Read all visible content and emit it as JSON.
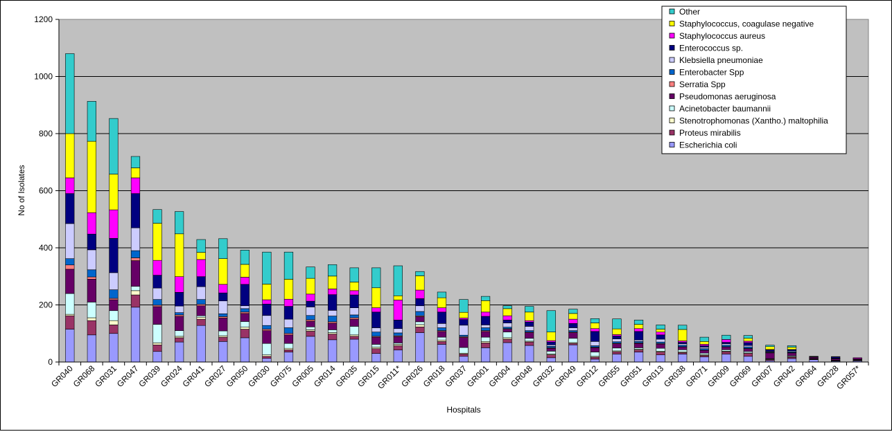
{
  "chart_data": {
    "type": "bar",
    "stacked": true,
    "title": "",
    "xlabel": "Hospitals",
    "ylabel": "No of Isolates",
    "ylim": [
      0,
      1200
    ],
    "yticks": [
      0,
      200,
      400,
      600,
      800,
      1000,
      1200
    ],
    "grid": true,
    "plot_background": "#C0C0C0",
    "legend_position": "top-right",
    "categories": [
      "GR040",
      "GR068",
      "GR031",
      "GR047",
      "GR039",
      "GR024",
      "GR041",
      "GR027",
      "GR050",
      "GR030",
      "GR075",
      "GR005",
      "GR014",
      "GR035",
      "GR015",
      "GR011*",
      "GR026",
      "GR018",
      "GR037",
      "GR001",
      "GR004",
      "GR048",
      "GR032",
      "GR049",
      "GR012",
      "GR055",
      "GR051",
      "GR013",
      "GR038",
      "GR071",
      "GR009",
      "GR069",
      "GR007",
      "GR042",
      "GR064",
      "GR028",
      "GR057*"
    ],
    "series": [
      {
        "name": "Escherichia coli",
        "color": "#9999FF",
        "values": [
          115,
          95,
          100,
          192,
          37,
          70,
          128,
          72,
          85,
          13,
          35,
          90,
          78,
          80,
          30,
          42,
          103,
          62,
          20,
          50,
          68,
          58,
          15,
          60,
          10,
          28,
          35,
          25,
          28,
          18,
          28,
          20,
          5,
          12,
          8,
          3,
          4
        ]
      },
      {
        "name": "Proteus mirabilis",
        "color": "#993366",
        "values": [
          47,
          50,
          30,
          43,
          23,
          15,
          22,
          15,
          30,
          7,
          8,
          18,
          20,
          10,
          17,
          15,
          20,
          10,
          8,
          17,
          12,
          12,
          10,
          5,
          7,
          8,
          7,
          10,
          5,
          5,
          8,
          10,
          3,
          5,
          2,
          1,
          2
        ]
      },
      {
        "name": "Stenotrophomonas (Xantho.) maltophilia",
        "color": "#FFFFCC",
        "values": [
          5,
          10,
          15,
          15,
          7,
          5,
          7,
          5,
          7,
          5,
          5,
          5,
          5,
          5,
          5,
          5,
          8,
          5,
          3,
          5,
          5,
          3,
          3,
          3,
          3,
          3,
          3,
          3,
          3,
          3,
          2,
          2,
          2,
          2,
          1,
          1,
          1
        ]
      },
      {
        "name": "Acinetobacter baumannii",
        "color": "#CCFFFF",
        "values": [
          73,
          55,
          35,
          15,
          65,
          20,
          5,
          17,
          20,
          40,
          17,
          10,
          10,
          30,
          10,
          5,
          10,
          10,
          20,
          15,
          20,
          10,
          10,
          15,
          15,
          10,
          5,
          10,
          7,
          5,
          5,
          5,
          2,
          3,
          1,
          1,
          1
        ]
      },
      {
        "name": "Pseudomonas aeruginosa",
        "color": "#660066",
        "values": [
          85,
          80,
          38,
          90,
          62,
          50,
          35,
          45,
          28,
          45,
          30,
          20,
          23,
          25,
          25,
          22,
          18,
          20,
          35,
          20,
          10,
          20,
          10,
          20,
          15,
          15,
          15,
          15,
          10,
          10,
          10,
          10,
          20,
          10,
          5,
          5,
          3
        ]
      },
      {
        "name": "Serratia Spp",
        "color": "#FF8080",
        "values": [
          15,
          8,
          5,
          10,
          5,
          5,
          5,
          5,
          5,
          5,
          5,
          5,
          5,
          5,
          3,
          3,
          3,
          3,
          3,
          3,
          2,
          2,
          2,
          2,
          2,
          2,
          2,
          2,
          1,
          1,
          1,
          1,
          1,
          1,
          0,
          0,
          1
        ]
      },
      {
        "name": "Enterobacter Spp",
        "color": "#0066CC",
        "values": [
          22,
          25,
          30,
          25,
          20,
          8,
          17,
          10,
          12,
          13,
          20,
          15,
          20,
          10,
          15,
          10,
          15,
          10,
          5,
          10,
          5,
          5,
          5,
          5,
          5,
          5,
          5,
          5,
          5,
          5,
          5,
          5,
          2,
          3,
          1,
          1,
          0
        ]
      },
      {
        "name": "Klebsiella pneumoniae",
        "color": "#CCCCFF",
        "values": [
          123,
          70,
          60,
          80,
          40,
          23,
          45,
          45,
          10,
          35,
          30,
          30,
          20,
          25,
          15,
          15,
          20,
          15,
          35,
          10,
          15,
          15,
          5,
          10,
          15,
          10,
          5,
          10,
          5,
          5,
          5,
          5,
          2,
          3,
          1,
          1,
          0
        ]
      },
      {
        "name": "Enterococcus sp.",
        "color": "#000080",
        "values": [
          105,
          55,
          120,
          120,
          45,
          48,
          35,
          28,
          75,
          40,
          45,
          20,
          55,
          45,
          55,
          30,
          25,
          40,
          20,
          30,
          10,
          15,
          10,
          15,
          35,
          10,
          30,
          15,
          5,
          5,
          5,
          10,
          5,
          5,
          0,
          5,
          0
        ]
      },
      {
        "name": "Staphylococcus aureus",
        "color": "#FF00FF",
        "values": [
          55,
          75,
          100,
          55,
          52,
          55,
          60,
          30,
          25,
          15,
          25,
          25,
          20,
          15,
          15,
          70,
          30,
          15,
          5,
          15,
          15,
          5,
          5,
          15,
          10,
          5,
          10,
          10,
          5,
          5,
          10,
          5,
          2,
          0,
          0,
          0,
          3
        ]
      },
      {
        "name": "Staphylococcus, coagulase negative",
        "color": "#FFFF00",
        "values": [
          155,
          250,
          125,
          35,
          130,
          150,
          25,
          90,
          45,
          55,
          70,
          55,
          45,
          30,
          70,
          15,
          50,
          35,
          20,
          40,
          25,
          30,
          30,
          20,
          20,
          20,
          15,
          10,
          40,
          10,
          0,
          10,
          10,
          8,
          0,
          0,
          0
        ]
      },
      {
        "name": "Other",
        "color": "#33CCCC",
        "values": [
          280,
          140,
          195,
          40,
          48,
          78,
          45,
          70,
          50,
          112,
          95,
          40,
          40,
          50,
          70,
          105,
          15,
          20,
          45,
          15,
          10,
          20,
          75,
          15,
          15,
          35,
          15,
          15,
          15,
          15,
          15,
          10,
          5,
          5,
          1,
          1,
          0
        ]
      }
    ]
  }
}
